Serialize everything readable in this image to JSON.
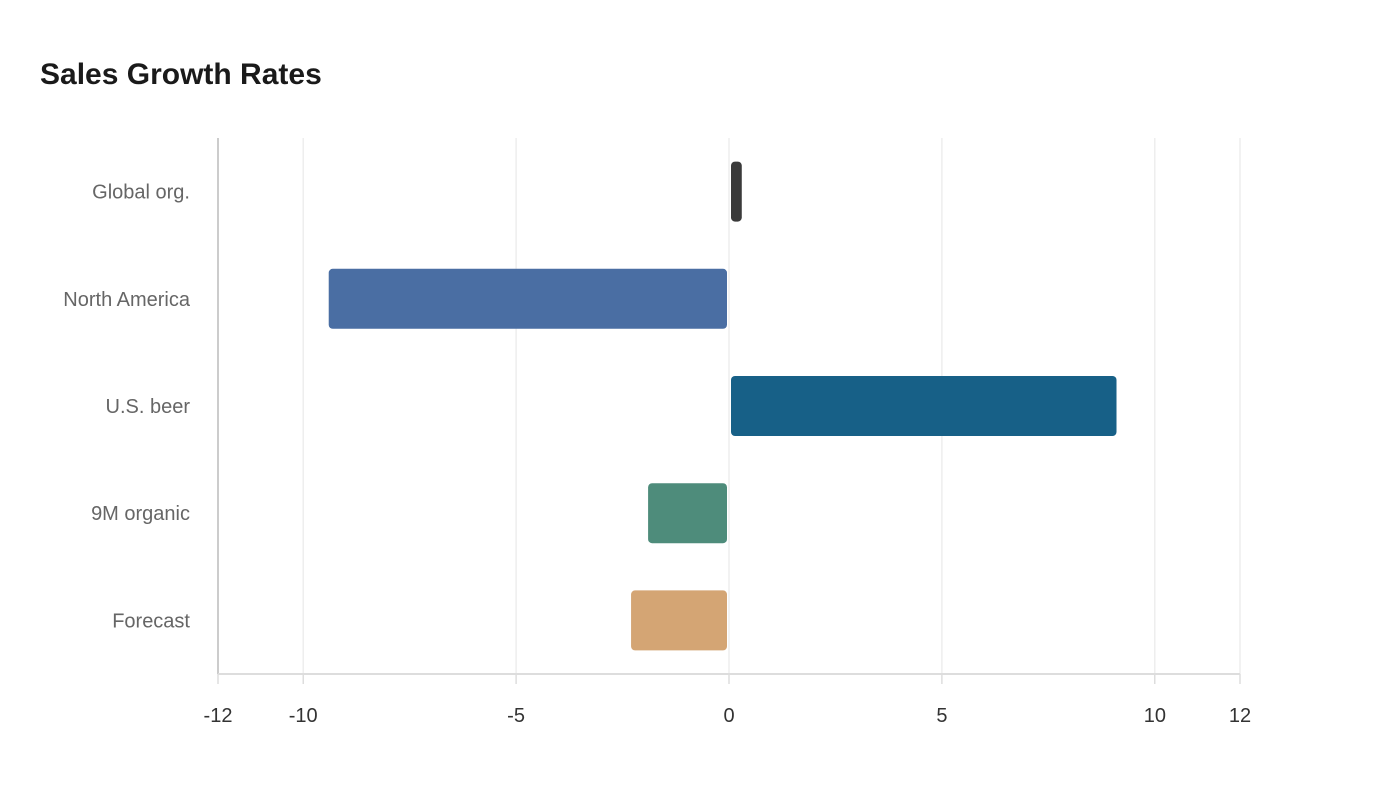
{
  "chart_data": {
    "type": "bar",
    "orientation": "horizontal",
    "title": "Sales Growth Rates",
    "xlabel": "",
    "ylabel": "",
    "categories": [
      "Global org.",
      "North America",
      "U.S. beer",
      "9M organic",
      "Forecast"
    ],
    "values": [
      0.3,
      -9.4,
      9.1,
      -1.9,
      -2.3
    ],
    "colors": [
      "#3a3a3a",
      "#4a6ea3",
      "#176087",
      "#4e8c7b",
      "#d4a574"
    ],
    "xlim": [
      -12,
      12
    ],
    "xticks": [
      "-12",
      "-10",
      "-5",
      "0",
      "5",
      "10",
      "12"
    ],
    "grid": true,
    "legend": "none"
  }
}
